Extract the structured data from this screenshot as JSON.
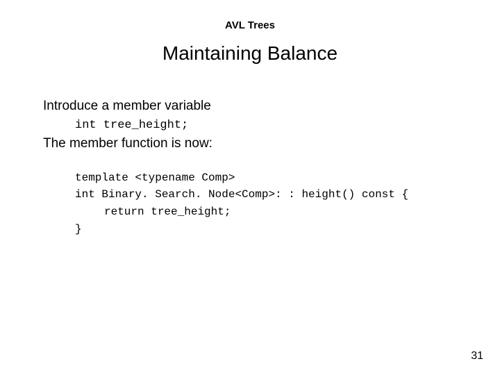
{
  "header": {
    "label": "AVL Trees"
  },
  "title": "Maintaining Balance",
  "body": {
    "line1": "Introduce a member variable",
    "code_inline": "int tree_height;",
    "line2": "The member function is now:"
  },
  "code": {
    "l1": "template <typename Comp>",
    "l2": "int Binary. Search. Node<Comp>: : height() const {",
    "l3": "return tree_height;",
    "l4": "}"
  },
  "page_number": "31",
  "colors": {
    "background": "#ffffff",
    "text": "#000000"
  }
}
